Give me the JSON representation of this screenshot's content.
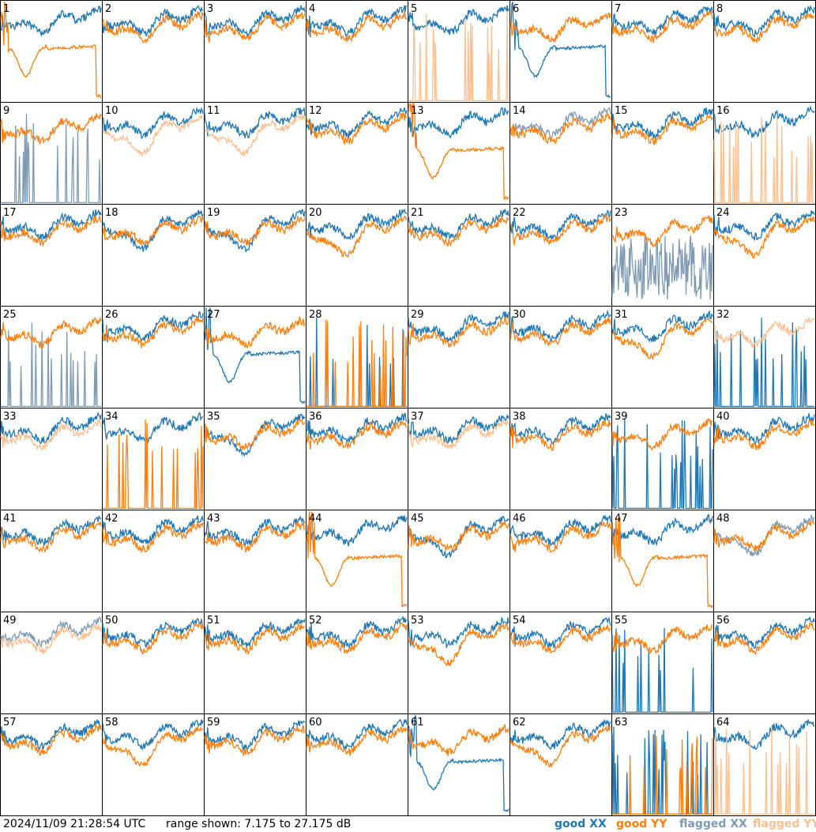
{
  "footer": {
    "timestamp": "2024/11/09 21:28:54 UTC",
    "range_text": "range shown: 7.175 to 27.175 dB"
  },
  "legend": [
    {
      "label": "good XX",
      "color": "#1f77b4"
    },
    {
      "label": "good YY",
      "color": "#ff7f0e"
    },
    {
      "label": "flagged XX",
      "color": "#7f9bb4"
    },
    {
      "label": "flagged YY",
      "color": "#fcbf90"
    }
  ],
  "chart_data": {
    "type": "line",
    "units": "dB",
    "ylim": [
      7.175,
      27.175
    ],
    "x": "frequency channel",
    "grid": false,
    "colors": {
      "good_xx": "#1f77b4",
      "good_yy": "#ff7f0e",
      "flagged_xx": "#7f9bb4",
      "flagged_yy": "#fcbf90"
    },
    "panels": [
      {
        "id": "1",
        "xx": "good",
        "yy": "good",
        "xx_shape": "normal",
        "yy_shape": "dip"
      },
      {
        "id": "2",
        "xx": "good",
        "yy": "good",
        "xx_shape": "normal",
        "yy_shape": "normal"
      },
      {
        "id": "3",
        "xx": "good",
        "yy": "good",
        "xx_shape": "normal",
        "yy_shape": "normal"
      },
      {
        "id": "4",
        "xx": "good",
        "yy": "good",
        "xx_shape": "normal",
        "yy_shape": "normal"
      },
      {
        "id": "5",
        "xx": "good",
        "yy": "flagged",
        "xx_shape": "normal",
        "yy_shape": "spikes"
      },
      {
        "id": "6",
        "xx": "good",
        "yy": "good",
        "xx_shape": "dip",
        "yy_shape": "normal"
      },
      {
        "id": "7",
        "xx": "good",
        "yy": "good",
        "xx_shape": "normal",
        "yy_shape": "normal"
      },
      {
        "id": "8",
        "xx": "good",
        "yy": "good",
        "xx_shape": "normal",
        "yy_shape": "normal"
      },
      {
        "id": "9",
        "xx": "flagged",
        "yy": "good",
        "xx_shape": "spikes",
        "yy_shape": "normal"
      },
      {
        "id": "10",
        "xx": "good",
        "yy": "flagged",
        "xx_shape": "normal",
        "yy_shape": "low"
      },
      {
        "id": "11",
        "xx": "good",
        "yy": "flagged",
        "xx_shape": "normal",
        "yy_shape": "low"
      },
      {
        "id": "12",
        "xx": "good",
        "yy": "good",
        "xx_shape": "normal",
        "yy_shape": "normal"
      },
      {
        "id": "13",
        "xx": "good",
        "yy": "good",
        "xx_shape": "normal",
        "yy_shape": "dip"
      },
      {
        "id": "14",
        "xx": "flagged",
        "yy": "good",
        "xx_shape": "normal",
        "yy_shape": "normal"
      },
      {
        "id": "15",
        "xx": "good",
        "yy": "good",
        "xx_shape": "normal",
        "yy_shape": "normal"
      },
      {
        "id": "16",
        "xx": "good",
        "yy": "flagged",
        "xx_shape": "normal",
        "yy_shape": "spikes"
      },
      {
        "id": "17",
        "xx": "good",
        "yy": "good",
        "xx_shape": "normal",
        "yy_shape": "normal"
      },
      {
        "id": "18",
        "xx": "good",
        "yy": "good",
        "xx_shape": "low",
        "yy_shape": "normal"
      },
      {
        "id": "19",
        "xx": "good",
        "yy": "good",
        "xx_shape": "low",
        "yy_shape": "normal"
      },
      {
        "id": "20",
        "xx": "good",
        "yy": "good",
        "xx_shape": "normal",
        "yy_shape": "low"
      },
      {
        "id": "21",
        "xx": "good",
        "yy": "good",
        "xx_shape": "normal",
        "yy_shape": "normal"
      },
      {
        "id": "22",
        "xx": "good",
        "yy": "good",
        "xx_shape": "normal",
        "yy_shape": "normal"
      },
      {
        "id": "23",
        "xx": "flagged",
        "yy": "good",
        "xx_shape": "noisy",
        "yy_shape": "normal"
      },
      {
        "id": "24",
        "xx": "good",
        "yy": "good",
        "xx_shape": "normal",
        "yy_shape": "low"
      },
      {
        "id": "25",
        "xx": "flagged",
        "yy": "good",
        "xx_shape": "spikes",
        "yy_shape": "normal"
      },
      {
        "id": "26",
        "xx": "good",
        "yy": "good",
        "xx_shape": "normal",
        "yy_shape": "normal"
      },
      {
        "id": "27",
        "xx": "good",
        "yy": "good",
        "xx_shape": "dip",
        "yy_shape": "normal"
      },
      {
        "id": "28",
        "xx": "good",
        "yy": "good",
        "xx_shape": "spikes",
        "yy_shape": "spikes"
      },
      {
        "id": "29",
        "xx": "good",
        "yy": "good",
        "xx_shape": "normal",
        "yy_shape": "normal"
      },
      {
        "id": "30",
        "xx": "good",
        "yy": "good",
        "xx_shape": "normal",
        "yy_shape": "normal"
      },
      {
        "id": "31",
        "xx": "good",
        "yy": "good",
        "xx_shape": "normal",
        "yy_shape": "low"
      },
      {
        "id": "32",
        "xx": "good",
        "yy": "flagged",
        "xx_shape": "spikes",
        "yy_shape": "normal"
      },
      {
        "id": "33",
        "xx": "good",
        "yy": "flagged",
        "xx_shape": "normal",
        "yy_shape": "normal"
      },
      {
        "id": "34",
        "xx": "good",
        "yy": "good",
        "xx_shape": "normal",
        "yy_shape": "spikes"
      },
      {
        "id": "35",
        "xx": "good",
        "yy": "good",
        "xx_shape": "low",
        "yy_shape": "normal"
      },
      {
        "id": "36",
        "xx": "good",
        "yy": "good",
        "xx_shape": "normal",
        "yy_shape": "normal"
      },
      {
        "id": "37",
        "xx": "good",
        "yy": "flagged",
        "xx_shape": "normal",
        "yy_shape": "normal"
      },
      {
        "id": "38",
        "xx": "good",
        "yy": "good",
        "xx_shape": "normal",
        "yy_shape": "normal"
      },
      {
        "id": "39",
        "xx": "good",
        "yy": "good",
        "xx_shape": "spikes",
        "yy_shape": "normal"
      },
      {
        "id": "40",
        "xx": "good",
        "yy": "good",
        "xx_shape": "normal",
        "yy_shape": "normal"
      },
      {
        "id": "41",
        "xx": "good",
        "yy": "good",
        "xx_shape": "normal",
        "yy_shape": "normal"
      },
      {
        "id": "42",
        "xx": "good",
        "yy": "good",
        "xx_shape": "normal",
        "yy_shape": "normal"
      },
      {
        "id": "43",
        "xx": "good",
        "yy": "good",
        "xx_shape": "normal",
        "yy_shape": "normal"
      },
      {
        "id": "44",
        "xx": "good",
        "yy": "good",
        "xx_shape": "normal",
        "yy_shape": "dip"
      },
      {
        "id": "45",
        "xx": "good",
        "yy": "good",
        "xx_shape": "low",
        "yy_shape": "normal"
      },
      {
        "id": "46",
        "xx": "good",
        "yy": "good",
        "xx_shape": "normal",
        "yy_shape": "normal"
      },
      {
        "id": "47",
        "xx": "good",
        "yy": "good",
        "xx_shape": "normal",
        "yy_shape": "dip"
      },
      {
        "id": "48",
        "xx": "flagged",
        "yy": "good",
        "xx_shape": "low",
        "yy_shape": "normal"
      },
      {
        "id": "49",
        "xx": "flagged",
        "yy": "flagged",
        "xx_shape": "normal",
        "yy_shape": "normal"
      },
      {
        "id": "50",
        "xx": "good",
        "yy": "good",
        "xx_shape": "normal",
        "yy_shape": "normal"
      },
      {
        "id": "51",
        "xx": "good",
        "yy": "good",
        "xx_shape": "normal",
        "yy_shape": "normal"
      },
      {
        "id": "52",
        "xx": "good",
        "yy": "good",
        "xx_shape": "normal",
        "yy_shape": "normal"
      },
      {
        "id": "53",
        "xx": "good",
        "yy": "good",
        "xx_shape": "normal",
        "yy_shape": "low"
      },
      {
        "id": "54",
        "xx": "good",
        "yy": "good",
        "xx_shape": "normal",
        "yy_shape": "normal"
      },
      {
        "id": "55",
        "xx": "good",
        "yy": "good",
        "xx_shape": "spikes",
        "yy_shape": "normal"
      },
      {
        "id": "56",
        "xx": "good",
        "yy": "good",
        "xx_shape": "normal",
        "yy_shape": "normal"
      },
      {
        "id": "57",
        "xx": "good",
        "yy": "good",
        "xx_shape": "normal",
        "yy_shape": "normal"
      },
      {
        "id": "58",
        "xx": "good",
        "yy": "good",
        "xx_shape": "normal",
        "yy_shape": "low"
      },
      {
        "id": "59",
        "xx": "good",
        "yy": "good",
        "xx_shape": "normal",
        "yy_shape": "normal"
      },
      {
        "id": "60",
        "xx": "good",
        "yy": "good",
        "xx_shape": "normal",
        "yy_shape": "normal"
      },
      {
        "id": "61",
        "xx": "good",
        "yy": "good",
        "xx_shape": "dip",
        "yy_shape": "normal"
      },
      {
        "id": "62",
        "xx": "good",
        "yy": "good",
        "xx_shape": "normal",
        "yy_shape": "low"
      },
      {
        "id": "63",
        "xx": "good",
        "yy": "good",
        "xx_shape": "spikes",
        "yy_shape": "spikes"
      },
      {
        "id": "64",
        "xx": "good",
        "yy": "flagged",
        "xx_shape": "normal",
        "yy_shape": "spikes"
      }
    ]
  }
}
